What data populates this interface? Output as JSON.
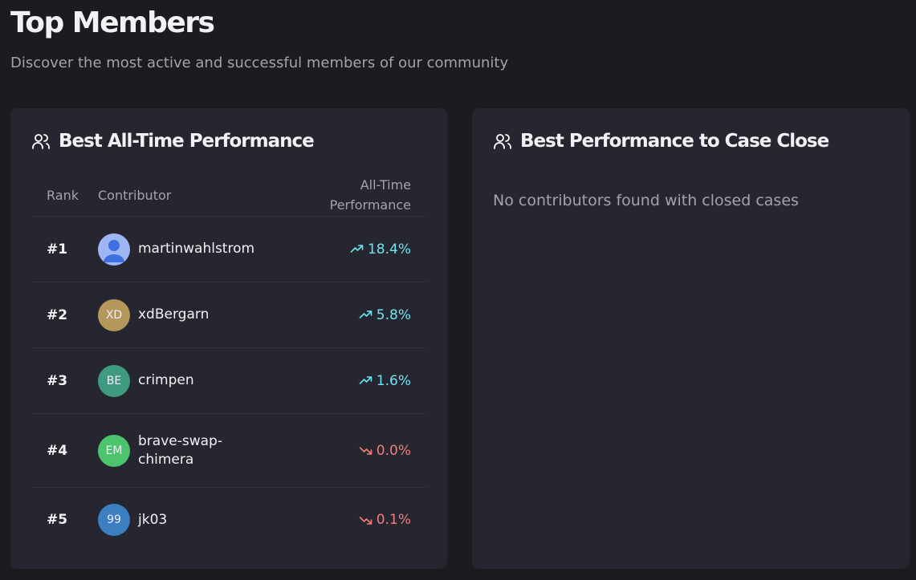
{
  "header": {
    "title": "Top Members",
    "subtitle": "Discover the most active and successful members of our community"
  },
  "panels": [
    {
      "title": "Best All-Time Performance",
      "columns": [
        "Rank",
        "Contributor",
        "All-Time Performance"
      ],
      "rows": [
        {
          "rank": "#1",
          "avatar": null,
          "avatar_color": "#9fb6f5",
          "name": "martinwahlstrom",
          "performance": "18.4%",
          "trend": "up"
        },
        {
          "rank": "#2",
          "avatar": "XD",
          "avatar_color": "#b4975a",
          "name": "xdBergarn",
          "performance": "5.8%",
          "trend": "up"
        },
        {
          "rank": "#3",
          "avatar": "BE",
          "avatar_color": "#3f9a7f",
          "name": "crimpen",
          "performance": "1.6%",
          "trend": "up"
        },
        {
          "rank": "#4",
          "avatar": "EM",
          "avatar_color": "#4cc46d",
          "name": "brave-swap-chimera",
          "performance": "0.0%",
          "trend": "down"
        },
        {
          "rank": "#5",
          "avatar": "99",
          "avatar_color": "#3b7fc0",
          "name": "jk03",
          "performance": "0.1%",
          "trend": "down"
        }
      ]
    },
    {
      "title": "Best Performance to Case Close",
      "empty_message": "No contributors found with closed cases"
    }
  ]
}
